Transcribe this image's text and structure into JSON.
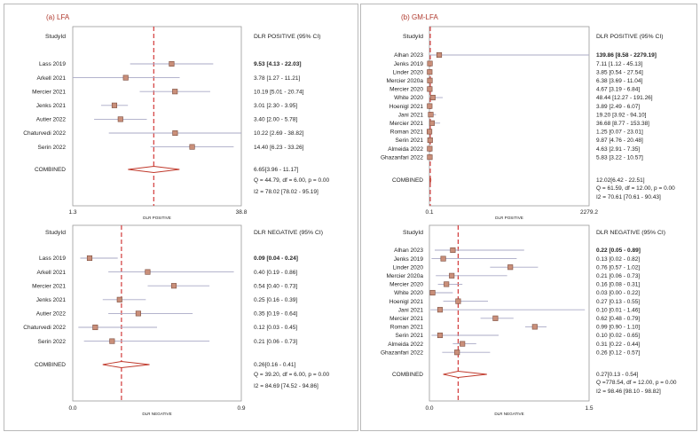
{
  "panels": [
    {
      "title": "(a) LFA"
    },
    {
      "title": "(b) GM-LFA"
    }
  ],
  "chart_data": [
    {
      "type": "forest",
      "panel": "(a) LFA",
      "header_left": "StudyId",
      "header_right": "DLR POSITIVE (95% CI)",
      "studies": [
        "Lass 2019",
        "Arkell 2021",
        "Mercier 2021",
        "Jenks 2021",
        "Autier 2022",
        "Chaturvedi 2022",
        "Serin 2022"
      ],
      "estimates": [
        9.53,
        3.78,
        10.19,
        3.01,
        3.4,
        10.22,
        14.4
      ],
      "lower": [
        4.13,
        1.27,
        5.01,
        2.3,
        2.0,
        2.69,
        6.23
      ],
      "upper": [
        22.03,
        11.21,
        20.74,
        3.95,
        5.78,
        38.82,
        33.26
      ],
      "ci_labels": [
        "9.53 [4.13 - 22.03]",
        "3.78 [1.27 - 11.21]",
        "10.19 [5.01 - 20.74]",
        "3.01 [2.30 - 3.95]",
        "3.40 [2.00 - 5.78]",
        "10.22 [2.69 - 38.82]",
        "14.40 [6.23 - 33.26]"
      ],
      "combined_label": "COMBINED",
      "combined": {
        "estimate": 6.65,
        "lower": 3.96,
        "upper": 11.17
      },
      "combined_ci_label": "6.65[3.96 - 11.17]",
      "stats": [
        "Q = 44.79, df = 6.00, p = 0.00",
        "I2 = 78.02 [78.02 - 95.19]"
      ],
      "axis_label": "DLR POSITIVE",
      "scale": "log",
      "xlim": [
        1.3,
        38.8
      ],
      "xtick_labels": [
        "1.3",
        "38.8"
      ]
    },
    {
      "type": "forest",
      "panel": "(a) LFA",
      "header_left": "StudyId",
      "header_right": "DLR NEGATIVE (95% CI)",
      "studies": [
        "Lass 2019",
        "Arkell 2021",
        "Mercier 2021",
        "Jenks 2021",
        "Autier 2022",
        "Chaturvedi 2022",
        "Serin 2022"
      ],
      "estimates": [
        0.09,
        0.4,
        0.54,
        0.25,
        0.35,
        0.12,
        0.21
      ],
      "lower": [
        0.04,
        0.19,
        0.4,
        0.16,
        0.19,
        0.03,
        0.06
      ],
      "upper": [
        0.24,
        0.86,
        0.73,
        0.39,
        0.64,
        0.45,
        0.73
      ],
      "ci_labels": [
        "0.09 [0.04 - 0.24]",
        "0.40 [0.19 - 0.86]",
        "0.54 [0.40 - 0.73]",
        "0.25 [0.16 - 0.39]",
        "0.35 [0.19 - 0.64]",
        "0.12 [0.03 - 0.45]",
        "0.21 [0.06 - 0.73]"
      ],
      "combined_label": "COMBINED",
      "combined": {
        "estimate": 0.26,
        "lower": 0.16,
        "upper": 0.41
      },
      "combined_ci_label": "0.26[0.16 - 0.41]",
      "stats": [
        "Q = 39.20, df = 6.00, p = 0.00",
        "I2 = 84.69 [74.52 - 94.86]"
      ],
      "axis_label": "DLR NEGATIVE",
      "scale": "linear",
      "xlim": [
        0.0,
        0.9
      ],
      "xtick_labels": [
        "0.0",
        "0.9"
      ]
    },
    {
      "type": "forest",
      "panel": "(b) GM-LFA",
      "header_left": "StudyId",
      "header_right": "DLR POSITIVE (95% CI)",
      "studies": [
        "Alhan 2023",
        "Jenks 2019",
        "Linder 2020",
        "Mercier 2020a",
        "Mercier 2020",
        "White 2020",
        "Hoenigl 2021",
        "Jani 2021",
        "Mercier 2021",
        "Roman 2021",
        "Serin 2021",
        "Almeida 2022",
        "Ghazanfari 2022"
      ],
      "estimates": [
        139.86,
        7.11,
        3.85,
        6.38,
        4.67,
        48.44,
        3.89,
        19.2,
        36.68,
        1.25,
        9.87,
        4.63,
        5.83
      ],
      "lower": [
        8.58,
        1.12,
        0.54,
        3.69,
        3.19,
        12.27,
        2.49,
        3.92,
        8.77,
        0.07,
        4.76,
        2.91,
        3.22
      ],
      "upper": [
        2279.19,
        45.13,
        27.54,
        11.04,
        6.84,
        191.26,
        6.07,
        94.1,
        153.38,
        23.01,
        20.48,
        7.35,
        10.57
      ],
      "ci_labels": [
        "139.86 [8.58 - 2279.19]",
        "7.11 [1.12 - 45.13]",
        "3.85 [0.54 - 27.54]",
        "6.38 [3.69 - 11.04]",
        "4.67 [3.19 - 6.84]",
        "48.44 [12.27 - 191.26]",
        "3.89 [2.49 - 6.07]",
        "19.20 [3.92 - 94.10]",
        "36.68 [8.77 - 153.38]",
        "1.25 [0.07 - 23.01]",
        "9.87 [4.76 - 20.48]",
        "4.63 [2.91 - 7.35]",
        "5.83 [3.22 - 10.57]"
      ],
      "combined_label": "COMBINED",
      "combined": {
        "estimate": 12.02,
        "lower": 6.42,
        "upper": 22.51
      },
      "combined_ci_label": "12.02[6.42 - 22.51]",
      "stats": [
        "Q = 61.59, df = 12.00, p = 0.00",
        "I2 = 70.61 [70.61 - 90.43]"
      ],
      "axis_label": "DLR POSITIVE",
      "scale": "linear",
      "xlim": [
        0.1,
        2279.2
      ],
      "xtick_labels": [
        "0.1",
        "2279.2"
      ]
    },
    {
      "type": "forest",
      "panel": "(b) GM-LFA",
      "header_left": "StudyId",
      "header_right": "DLR NEGATIVE (95% CI)",
      "studies": [
        "Alhan 2023",
        "Jenks 2019",
        "Linder 2020",
        "Mercier 2020a",
        "Mercier 2020",
        "White 2020",
        "Hoenigl 2021",
        "Jani 2021",
        "Mercier 2021",
        "Roman 2021",
        "Serin 2021",
        "Almeida 2022",
        "Ghazanfari 2022"
      ],
      "estimates": [
        0.22,
        0.13,
        0.76,
        0.21,
        0.16,
        0.03,
        0.27,
        0.1,
        0.62,
        0.99,
        0.1,
        0.31,
        0.26
      ],
      "lower": [
        0.05,
        0.02,
        0.57,
        0.06,
        0.08,
        0.0,
        0.13,
        0.01,
        0.48,
        0.9,
        0.02,
        0.22,
        0.12
      ],
      "upper": [
        0.89,
        0.82,
        1.02,
        0.73,
        0.31,
        0.22,
        0.55,
        1.46,
        0.79,
        1.1,
        0.65,
        0.44,
        0.57
      ],
      "ci_labels": [
        "0.22 [0.05 - 0.89]",
        "0.13 [0.02 - 0.82]",
        "0.76 [0.57 - 1.02]",
        "0.21 [0.06 - 0.73]",
        "0.16 [0.08 - 0.31]",
        "0.03 [0.00 - 0.22]",
        "0.27 [0.13 - 0.55]",
        "0.10 [0.01 - 1.46]",
        "0.62 [0.48 - 0.79]",
        "0.99 [0.90 - 1.10]",
        "0.10 [0.02 - 0.65]",
        "0.31 [0.22 - 0.44]",
        "0.26 [0.12 - 0.57]"
      ],
      "combined_label": "COMBINED",
      "combined": {
        "estimate": 0.27,
        "lower": 0.13,
        "upper": 0.54
      },
      "combined_ci_label": "0.27[0.13 - 0.54]",
      "stats": [
        "Q =778.54, df = 12.00, p = 0.00",
        "I2 = 98.46 [98.10 - 98.82]"
      ],
      "axis_label": "DLR NEGATIVE",
      "scale": "linear",
      "xlim": [
        0.0,
        1.5
      ],
      "xtick_labels": [
        "0.0",
        "1.5"
      ]
    }
  ],
  "colors": {
    "marker_fill": "#c98f7a",
    "marker_stroke": "#7a4b3c",
    "ci_line": "#a9a9c6",
    "combined_line": "#d23a3a",
    "diamond_stroke": "#c0392b",
    "title": "#b03a2e",
    "border": "#9a9a9a"
  }
}
